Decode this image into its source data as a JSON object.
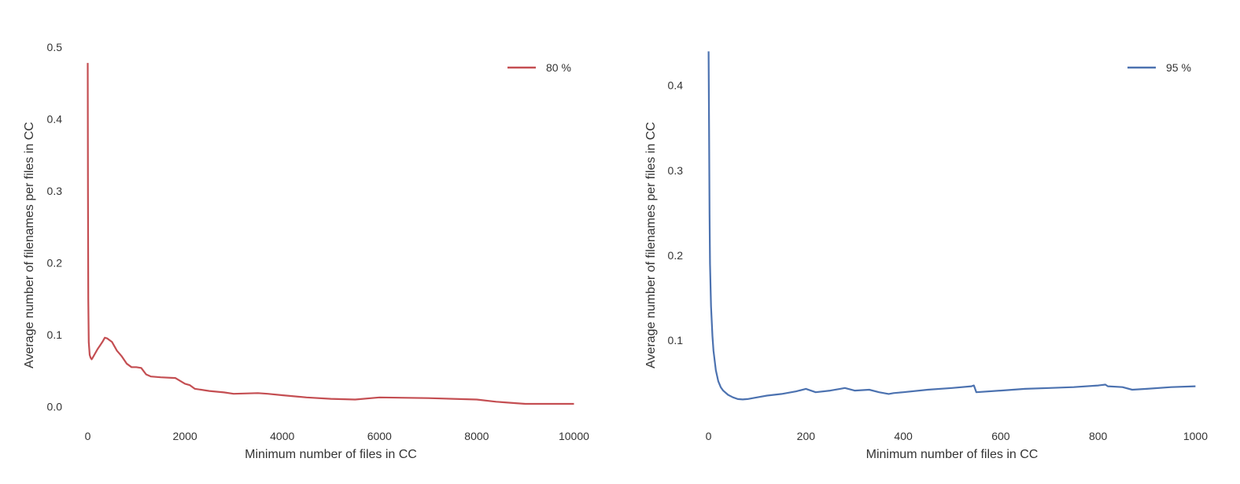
{
  "chart_data": [
    {
      "type": "line",
      "xlabel": "Minimum number of files in CC",
      "ylabel": "Average number of filenames per files in CC",
      "xlim": [
        -300,
        10300
      ],
      "ylim": [
        -0.02,
        0.5
      ],
      "xticks": [
        0,
        2000,
        4000,
        6000,
        8000,
        10000
      ],
      "xtick_labels": [
        "0",
        "2000",
        "4000",
        "6000",
        "8000",
        "10000"
      ],
      "yticks": [
        0.0,
        0.1,
        0.2,
        0.3,
        0.4,
        0.5
      ],
      "ytick_labels": [
        "0.0",
        "0.1",
        "0.2",
        "0.3",
        "0.4",
        "0.5"
      ],
      "grid": false,
      "legend_position": "top-right",
      "series": [
        {
          "name": "80 %",
          "color": "#c44e52",
          "x": [
            0,
            5,
            10,
            20,
            40,
            60,
            80,
            100,
            150,
            200,
            300,
            350,
            400,
            500,
            600,
            700,
            800,
            900,
            1000,
            1100,
            1200,
            1300,
            1500,
            1800,
            2000,
            2100,
            2200,
            2500,
            2800,
            3000,
            3500,
            3700,
            4000,
            4500,
            5000,
            5500,
            6000,
            7000,
            8000,
            8400,
            8800,
            9000,
            10000
          ],
          "y": [
            0.478,
            0.3,
            0.15,
            0.09,
            0.072,
            0.068,
            0.066,
            0.068,
            0.074,
            0.08,
            0.09,
            0.096,
            0.095,
            0.09,
            0.078,
            0.07,
            0.06,
            0.055,
            0.055,
            0.054,
            0.045,
            0.042,
            0.041,
            0.04,
            0.032,
            0.03,
            0.025,
            0.022,
            0.02,
            0.018,
            0.019,
            0.018,
            0.016,
            0.013,
            0.011,
            0.01,
            0.013,
            0.012,
            0.01,
            0.007,
            0.005,
            0.004,
            0.004
          ]
        }
      ]
    },
    {
      "type": "line",
      "xlabel": "Minimum number of files in CC",
      "ylabel": "Average number of filenames per files in CC",
      "xlim": [
        -30,
        1030
      ],
      "ylim": [
        0.005,
        0.445
      ],
      "xticks": [
        0,
        200,
        400,
        600,
        800,
        1000
      ],
      "xtick_labels": [
        "0",
        "200",
        "400",
        "600",
        "800",
        "1000"
      ],
      "yticks": [
        0.1,
        0.2,
        0.3,
        0.4
      ],
      "ytick_labels": [
        "0.1",
        "0.2",
        "0.3",
        "0.4"
      ],
      "grid": false,
      "legend_position": "top-right",
      "series": [
        {
          "name": "95 %",
          "color": "#4c72b0",
          "x": [
            0,
            1,
            2,
            3,
            5,
            8,
            10,
            15,
            20,
            25,
            30,
            40,
            50,
            60,
            70,
            80,
            100,
            120,
            150,
            180,
            200,
            220,
            250,
            270,
            280,
            300,
            330,
            350,
            370,
            380,
            400,
            450,
            500,
            540,
            545,
            550,
            600,
            650,
            700,
            750,
            800,
            815,
            820,
            850,
            870,
            900,
            950,
            1000
          ],
          "y": [
            0.44,
            0.35,
            0.25,
            0.19,
            0.14,
            0.105,
            0.088,
            0.065,
            0.052,
            0.045,
            0.041,
            0.036,
            0.033,
            0.031,
            0.0305,
            0.031,
            0.033,
            0.035,
            0.037,
            0.04,
            0.043,
            0.039,
            0.041,
            0.043,
            0.044,
            0.041,
            0.042,
            0.039,
            0.037,
            0.038,
            0.039,
            0.042,
            0.044,
            0.046,
            0.047,
            0.039,
            0.041,
            0.043,
            0.044,
            0.045,
            0.047,
            0.048,
            0.046,
            0.045,
            0.042,
            0.043,
            0.045,
            0.046
          ]
        }
      ]
    }
  ]
}
